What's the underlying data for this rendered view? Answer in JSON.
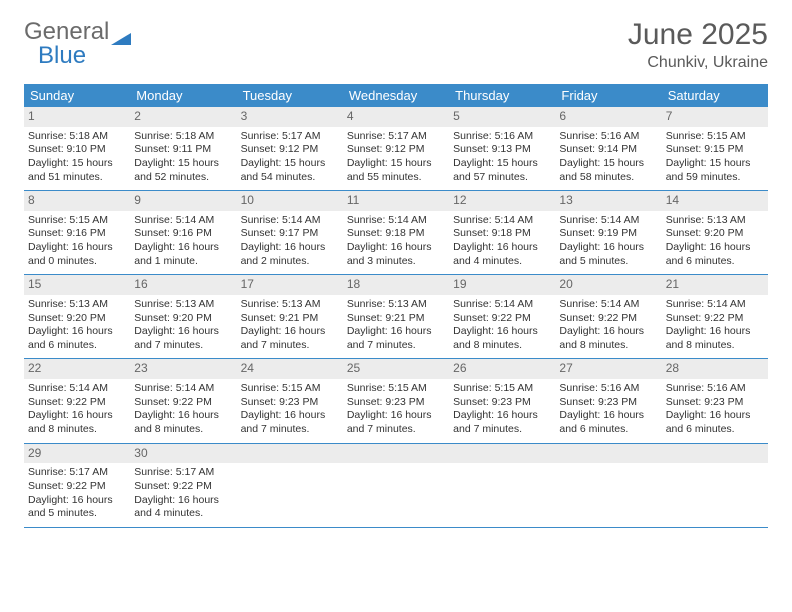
{
  "logo": {
    "text1": "General",
    "text2": "Blue"
  },
  "header": {
    "month": "June 2025",
    "location": "Chunkiv, Ukraine"
  },
  "weekdays": [
    "Sunday",
    "Monday",
    "Tuesday",
    "Wednesday",
    "Thursday",
    "Friday",
    "Saturday"
  ],
  "colors": {
    "header_bar": "#3b8bc9",
    "daynum_bg": "#ececec",
    "logo_gray": "#6b6b6b",
    "logo_blue": "#2e7bc0"
  },
  "weeks": [
    [
      {
        "n": "1",
        "sr": "Sunrise: 5:18 AM",
        "ss": "Sunset: 9:10 PM",
        "dl1": "Daylight: 15 hours",
        "dl2": "and 51 minutes."
      },
      {
        "n": "2",
        "sr": "Sunrise: 5:18 AM",
        "ss": "Sunset: 9:11 PM",
        "dl1": "Daylight: 15 hours",
        "dl2": "and 52 minutes."
      },
      {
        "n": "3",
        "sr": "Sunrise: 5:17 AM",
        "ss": "Sunset: 9:12 PM",
        "dl1": "Daylight: 15 hours",
        "dl2": "and 54 minutes."
      },
      {
        "n": "4",
        "sr": "Sunrise: 5:17 AM",
        "ss": "Sunset: 9:12 PM",
        "dl1": "Daylight: 15 hours",
        "dl2": "and 55 minutes."
      },
      {
        "n": "5",
        "sr": "Sunrise: 5:16 AM",
        "ss": "Sunset: 9:13 PM",
        "dl1": "Daylight: 15 hours",
        "dl2": "and 57 minutes."
      },
      {
        "n": "6",
        "sr": "Sunrise: 5:16 AM",
        "ss": "Sunset: 9:14 PM",
        "dl1": "Daylight: 15 hours",
        "dl2": "and 58 minutes."
      },
      {
        "n": "7",
        "sr": "Sunrise: 5:15 AM",
        "ss": "Sunset: 9:15 PM",
        "dl1": "Daylight: 15 hours",
        "dl2": "and 59 minutes."
      }
    ],
    [
      {
        "n": "8",
        "sr": "Sunrise: 5:15 AM",
        "ss": "Sunset: 9:16 PM",
        "dl1": "Daylight: 16 hours",
        "dl2": "and 0 minutes."
      },
      {
        "n": "9",
        "sr": "Sunrise: 5:14 AM",
        "ss": "Sunset: 9:16 PM",
        "dl1": "Daylight: 16 hours",
        "dl2": "and 1 minute."
      },
      {
        "n": "10",
        "sr": "Sunrise: 5:14 AM",
        "ss": "Sunset: 9:17 PM",
        "dl1": "Daylight: 16 hours",
        "dl2": "and 2 minutes."
      },
      {
        "n": "11",
        "sr": "Sunrise: 5:14 AM",
        "ss": "Sunset: 9:18 PM",
        "dl1": "Daylight: 16 hours",
        "dl2": "and 3 minutes."
      },
      {
        "n": "12",
        "sr": "Sunrise: 5:14 AM",
        "ss": "Sunset: 9:18 PM",
        "dl1": "Daylight: 16 hours",
        "dl2": "and 4 minutes."
      },
      {
        "n": "13",
        "sr": "Sunrise: 5:14 AM",
        "ss": "Sunset: 9:19 PM",
        "dl1": "Daylight: 16 hours",
        "dl2": "and 5 minutes."
      },
      {
        "n": "14",
        "sr": "Sunrise: 5:13 AM",
        "ss": "Sunset: 9:20 PM",
        "dl1": "Daylight: 16 hours",
        "dl2": "and 6 minutes."
      }
    ],
    [
      {
        "n": "15",
        "sr": "Sunrise: 5:13 AM",
        "ss": "Sunset: 9:20 PM",
        "dl1": "Daylight: 16 hours",
        "dl2": "and 6 minutes."
      },
      {
        "n": "16",
        "sr": "Sunrise: 5:13 AM",
        "ss": "Sunset: 9:20 PM",
        "dl1": "Daylight: 16 hours",
        "dl2": "and 7 minutes."
      },
      {
        "n": "17",
        "sr": "Sunrise: 5:13 AM",
        "ss": "Sunset: 9:21 PM",
        "dl1": "Daylight: 16 hours",
        "dl2": "and 7 minutes."
      },
      {
        "n": "18",
        "sr": "Sunrise: 5:13 AM",
        "ss": "Sunset: 9:21 PM",
        "dl1": "Daylight: 16 hours",
        "dl2": "and 7 minutes."
      },
      {
        "n": "19",
        "sr": "Sunrise: 5:14 AM",
        "ss": "Sunset: 9:22 PM",
        "dl1": "Daylight: 16 hours",
        "dl2": "and 8 minutes."
      },
      {
        "n": "20",
        "sr": "Sunrise: 5:14 AM",
        "ss": "Sunset: 9:22 PM",
        "dl1": "Daylight: 16 hours",
        "dl2": "and 8 minutes."
      },
      {
        "n": "21",
        "sr": "Sunrise: 5:14 AM",
        "ss": "Sunset: 9:22 PM",
        "dl1": "Daylight: 16 hours",
        "dl2": "and 8 minutes."
      }
    ],
    [
      {
        "n": "22",
        "sr": "Sunrise: 5:14 AM",
        "ss": "Sunset: 9:22 PM",
        "dl1": "Daylight: 16 hours",
        "dl2": "and 8 minutes."
      },
      {
        "n": "23",
        "sr": "Sunrise: 5:14 AM",
        "ss": "Sunset: 9:22 PM",
        "dl1": "Daylight: 16 hours",
        "dl2": "and 8 minutes."
      },
      {
        "n": "24",
        "sr": "Sunrise: 5:15 AM",
        "ss": "Sunset: 9:23 PM",
        "dl1": "Daylight: 16 hours",
        "dl2": "and 7 minutes."
      },
      {
        "n": "25",
        "sr": "Sunrise: 5:15 AM",
        "ss": "Sunset: 9:23 PM",
        "dl1": "Daylight: 16 hours",
        "dl2": "and 7 minutes."
      },
      {
        "n": "26",
        "sr": "Sunrise: 5:15 AM",
        "ss": "Sunset: 9:23 PM",
        "dl1": "Daylight: 16 hours",
        "dl2": "and 7 minutes."
      },
      {
        "n": "27",
        "sr": "Sunrise: 5:16 AM",
        "ss": "Sunset: 9:23 PM",
        "dl1": "Daylight: 16 hours",
        "dl2": "and 6 minutes."
      },
      {
        "n": "28",
        "sr": "Sunrise: 5:16 AM",
        "ss": "Sunset: 9:23 PM",
        "dl1": "Daylight: 16 hours",
        "dl2": "and 6 minutes."
      }
    ],
    [
      {
        "n": "29",
        "sr": "Sunrise: 5:17 AM",
        "ss": "Sunset: 9:22 PM",
        "dl1": "Daylight: 16 hours",
        "dl2": "and 5 minutes."
      },
      {
        "n": "30",
        "sr": "Sunrise: 5:17 AM",
        "ss": "Sunset: 9:22 PM",
        "dl1": "Daylight: 16 hours",
        "dl2": "and 4 minutes."
      },
      {
        "n": "",
        "empty": true
      },
      {
        "n": "",
        "empty": true
      },
      {
        "n": "",
        "empty": true
      },
      {
        "n": "",
        "empty": true
      },
      {
        "n": "",
        "empty": true
      }
    ]
  ]
}
